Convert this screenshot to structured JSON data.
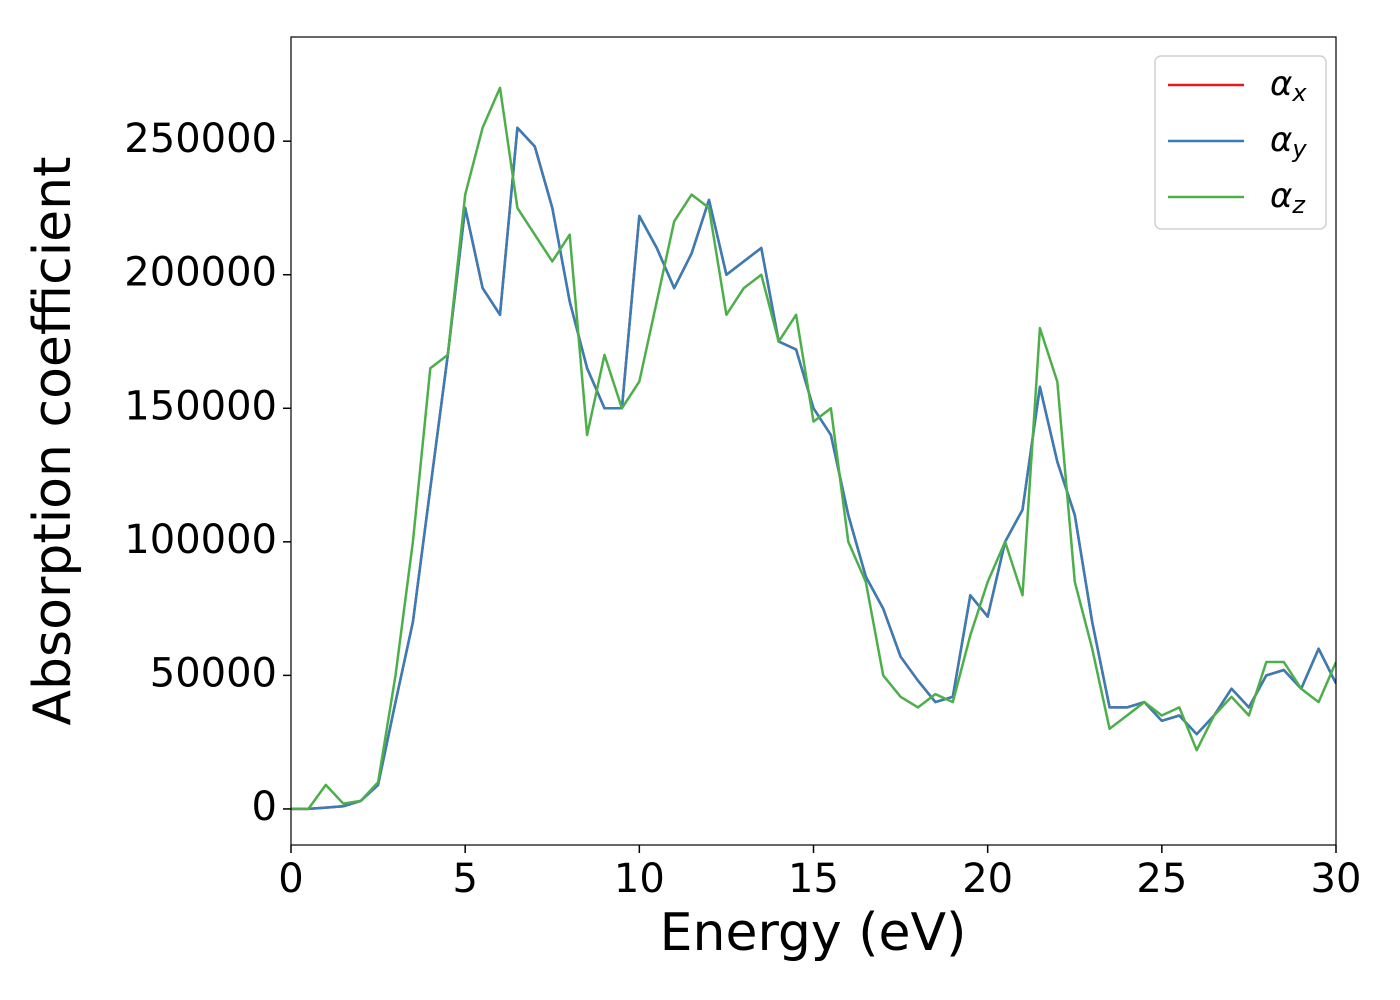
{
  "chart_data": {
    "type": "line",
    "xlabel": "Energy (eV)",
    "ylabel": "Absorption coefficient",
    "x": [
      0,
      0.5,
      1,
      1.5,
      2,
      2.5,
      3,
      3.5,
      4,
      4.5,
      5,
      5.5,
      6,
      6.5,
      7,
      7.5,
      8,
      8.5,
      9,
      9.5,
      10,
      10.5,
      11,
      11.5,
      12,
      12.5,
      13,
      13.5,
      14,
      14.5,
      15,
      15.5,
      16,
      16.5,
      17,
      17.5,
      18,
      18.5,
      19,
      19.5,
      20,
      20.5,
      21,
      21.5,
      22,
      22.5,
      23,
      23.5,
      24,
      24.5,
      25,
      25.5,
      26,
      26.5,
      27,
      27.5,
      28,
      28.5,
      29,
      29.5,
      30
    ],
    "series": [
      {
        "name": "αx",
        "color": "#e41a1c",
        "values": [
          0,
          0,
          500,
          1000,
          3000,
          9000,
          40000,
          70000,
          120000,
          170000,
          225000,
          195000,
          185000,
          255000,
          248000,
          225000,
          190000,
          165000,
          150000,
          150000,
          222000,
          210000,
          195000,
          208000,
          228000,
          200000,
          205000,
          210000,
          175000,
          172000,
          150000,
          140000,
          110000,
          87000,
          75000,
          57000,
          48000,
          40000,
          42000,
          80000,
          72000,
          100000,
          112000,
          158000,
          130000,
          110000,
          70000,
          38000,
          38000,
          40000,
          33000,
          35000,
          28000,
          35000,
          45000,
          38000,
          50000,
          52000,
          45000,
          60000,
          47000
        ]
      },
      {
        "name": "αy",
        "color": "#377eb8",
        "values": [
          0,
          0,
          500,
          1000,
          3000,
          9000,
          40000,
          70000,
          120000,
          170000,
          225000,
          195000,
          185000,
          255000,
          248000,
          225000,
          190000,
          165000,
          150000,
          150000,
          222000,
          210000,
          195000,
          208000,
          228000,
          200000,
          205000,
          210000,
          175000,
          172000,
          150000,
          140000,
          110000,
          87000,
          75000,
          57000,
          48000,
          40000,
          42000,
          80000,
          72000,
          100000,
          112000,
          158000,
          130000,
          110000,
          70000,
          38000,
          38000,
          40000,
          33000,
          35000,
          28000,
          35000,
          45000,
          38000,
          50000,
          52000,
          45000,
          60000,
          47000
        ]
      },
      {
        "name": "αz",
        "color": "#4daf4a",
        "values": [
          0,
          0,
          9000,
          2000,
          3000,
          10000,
          50000,
          100000,
          165000,
          170000,
          230000,
          255000,
          270000,
          225000,
          215000,
          205000,
          215000,
          140000,
          170000,
          150000,
          160000,
          190000,
          220000,
          230000,
          225000,
          185000,
          195000,
          200000,
          175000,
          185000,
          145000,
          150000,
          100000,
          85000,
          50000,
          42000,
          38000,
          43000,
          40000,
          65000,
          85000,
          100000,
          80000,
          180000,
          160000,
          85000,
          60000,
          30000,
          35000,
          40000,
          35000,
          38000,
          22000,
          35000,
          42000,
          35000,
          55000,
          55000,
          45000,
          40000,
          55000
        ]
      }
    ],
    "xlim": [
      0,
      30
    ],
    "xticks": [
      0,
      5,
      10,
      15,
      20,
      25,
      30
    ],
    "ylim": [
      -13500,
      289000
    ],
    "yticks": [
      0,
      50000,
      100000,
      150000,
      200000,
      250000
    ],
    "legend": "upper right",
    "grid": false
  }
}
